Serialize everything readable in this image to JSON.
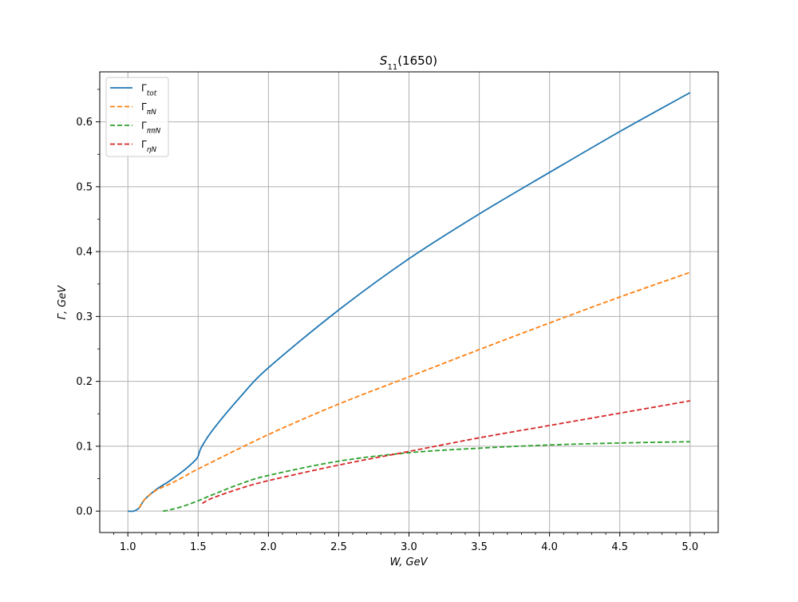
{
  "chart_data": {
    "type": "line",
    "title": "S11(1650)",
    "title_main": "S",
    "title_sub": "11",
    "title_rest": "(1650)",
    "xlabel": "W, GeV",
    "ylabel": "Γ, GeV",
    "xlim": [
      0.8,
      5.2
    ],
    "ylim": [
      -0.033,
      0.677
    ],
    "xticks": [
      1.0,
      1.5,
      2.0,
      2.5,
      3.0,
      3.5,
      4.0,
      4.5,
      5.0
    ],
    "xtick_labels": [
      "1.0",
      "1.5",
      "2.0",
      "2.5",
      "3.0",
      "3.5",
      "4.0",
      "4.5",
      "5.0"
    ],
    "yticks": [
      0.0,
      0.1,
      0.2,
      0.3,
      0.4,
      0.5,
      0.6
    ],
    "ytick_labels": [
      "0.0",
      "0.1",
      "0.2",
      "0.3",
      "0.4",
      "0.5",
      "0.6"
    ],
    "grid": true,
    "legend_position": "upper-left",
    "series": [
      {
        "name": "Γtot",
        "label_main": "Γ",
        "label_sub": "tot",
        "color": "#1f77b4",
        "dash": "solid",
        "x": [
          1.0,
          1.04,
          1.08,
          1.12,
          1.2,
          1.3,
          1.4,
          1.49,
          1.52,
          1.6,
          1.8,
          2.0,
          2.5,
          3.0,
          3.5,
          4.0,
          4.5,
          5.0
        ],
        "y": [
          0.0,
          0.0,
          0.005,
          0.018,
          0.033,
          0.047,
          0.063,
          0.081,
          0.097,
          0.124,
          0.176,
          0.221,
          0.31,
          0.389,
          0.458,
          0.522,
          0.585,
          0.645
        ]
      },
      {
        "name": "ΓπN",
        "label_main": "Γ",
        "label_sub": "πN",
        "color": "#ff7f0e",
        "dash": "dashed",
        "x": [
          1.08,
          1.12,
          1.2,
          1.3,
          1.4,
          1.5,
          2.0,
          2.5,
          3.0,
          3.5,
          4.0,
          4.5,
          5.0
        ],
        "y": [
          0.005,
          0.018,
          0.032,
          0.042,
          0.053,
          0.065,
          0.118,
          0.165,
          0.207,
          0.249,
          0.29,
          0.33,
          0.368
        ]
      },
      {
        "name": "ΓππN",
        "label_main": "Γ",
        "label_sub": "ππN",
        "color": "#2ca02c",
        "dash": "dashed",
        "x": [
          1.25,
          1.3,
          1.4,
          1.5,
          1.6,
          1.8,
          2.0,
          2.5,
          3.0,
          3.5,
          4.0,
          4.5,
          5.0
        ],
        "y": [
          0.0,
          0.002,
          0.008,
          0.016,
          0.025,
          0.042,
          0.055,
          0.077,
          0.09,
          0.097,
          0.102,
          0.105,
          0.107
        ]
      },
      {
        "name": "ΓηN",
        "label_main": "Γ",
        "label_sub": "ηN",
        "color": "#d62728",
        "dash": "dashed",
        "x": [
          1.53,
          1.6,
          1.8,
          2.0,
          2.5,
          3.0,
          3.5,
          4.0,
          4.5,
          5.0
        ],
        "y": [
          0.012,
          0.02,
          0.035,
          0.047,
          0.071,
          0.092,
          0.113,
          0.132,
          0.151,
          0.17
        ]
      }
    ]
  }
}
